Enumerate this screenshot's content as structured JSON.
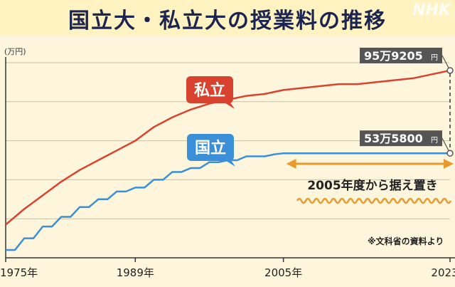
{
  "header": {
    "title": "国立大・私立大の授業料の推移",
    "watermark": "NHK"
  },
  "colors": {
    "private": "#d9422e",
    "national": "#3a8fd8",
    "annotation": "#e89a2c",
    "label_bg": "#555555"
  },
  "chart_data": {
    "type": "line",
    "unit_label": "(万円)",
    "x_ticks": [
      "1975年",
      "1989年",
      "2005年",
      "2023年"
    ],
    "x_tick_values": [
      1975,
      1989,
      2005,
      2023
    ],
    "xlim": [
      1975,
      2023
    ],
    "ylim": [
      0,
      100
    ],
    "grid": true,
    "series": [
      {
        "name": "私立",
        "x": [
          1975,
          1977,
          1979,
          1981,
          1983,
          1985,
          1987,
          1989,
          1991,
          1993,
          1995,
          1997,
          1999,
          2001,
          2003,
          2005,
          2007,
          2009,
          2011,
          2013,
          2015,
          2017,
          2019,
          2021,
          2023
        ],
        "values": [
          17,
          25,
          32,
          39,
          45,
          50,
          55,
          60,
          67,
          72,
          76,
          79,
          81,
          83,
          84,
          86,
          87,
          88,
          89,
          89,
          90,
          91,
          92,
          94,
          96
        ]
      },
      {
        "name": "国立",
        "x": [
          1975,
          1976,
          1977,
          1978,
          1979,
          1980,
          1981,
          1982,
          1983,
          1984,
          1985,
          1986,
          1987,
          1988,
          1989,
          1990,
          1991,
          1992,
          1993,
          1994,
          1995,
          1996,
          1997,
          1998,
          1999,
          2000,
          2001,
          2002,
          2003,
          2004,
          2005,
          2023
        ],
        "values": [
          4,
          4,
          10,
          10,
          16,
          16,
          21,
          21,
          26,
          26,
          30,
          30,
          34,
          34,
          36,
          36,
          40,
          40,
          44,
          44,
          46,
          46,
          49,
          49,
          50,
          50,
          52,
          52,
          52,
          53,
          53.58,
          53.58
        ]
      }
    ],
    "end_labels": [
      {
        "series": "私立",
        "value_main": "95万9205",
        "unit": "円"
      },
      {
        "series": "国立",
        "value_main": "53万5800",
        "unit": "円"
      }
    ],
    "annotation": "2005年度から据え置き",
    "note": "※文科省の資料より"
  }
}
